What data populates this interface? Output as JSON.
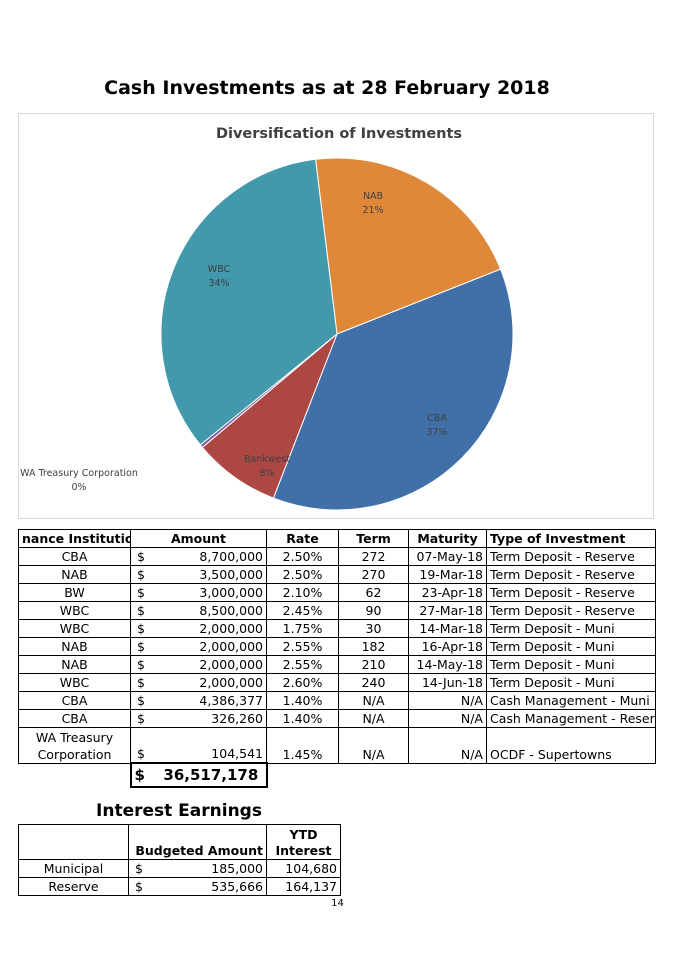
{
  "page": {
    "title": "Cash Investments as at 28 February 2018",
    "page_number": "14"
  },
  "chart_data": {
    "type": "pie",
    "title": "Diversification of Investments",
    "slices": [
      {
        "name": "NAB",
        "label": "21%",
        "value": 21,
        "color": "#E0883A"
      },
      {
        "name": "CBA",
        "label": "37%",
        "value": 37,
        "color": "#4170A8"
      },
      {
        "name": "Bankwest",
        "label": "8%",
        "value": 8,
        "color": "#AC4744"
      },
      {
        "name": "WA Treasury Corporation",
        "label": "0%",
        "value": 0.3,
        "color": "#7D60A0"
      },
      {
        "name": "WBC",
        "label": "34%",
        "value": 34,
        "color": "#4299AC"
      }
    ]
  },
  "investments": {
    "headers": [
      "nance Institutio",
      "Amount",
      "Rate",
      "Term",
      "Maturity",
      "Type of Investment"
    ],
    "currency_symbol": "$",
    "rows": [
      {
        "institution": "CBA",
        "amount": "8,700,000",
        "rate": "2.50%",
        "term": "272",
        "maturity": "07-May-18",
        "type": "Term Deposit - Reserve"
      },
      {
        "institution": "NAB",
        "amount": "3,500,000",
        "rate": "2.50%",
        "term": "270",
        "maturity": "19-Mar-18",
        "type": "Term Deposit - Reserve"
      },
      {
        "institution": "BW",
        "amount": "3,000,000",
        "rate": "2.10%",
        "term": "62",
        "maturity": "23-Apr-18",
        "type": "Term Deposit - Reserve"
      },
      {
        "institution": "WBC",
        "amount": "8,500,000",
        "rate": "2.45%",
        "term": "90",
        "maturity": "27-Mar-18",
        "type": "Term Deposit - Reserve"
      },
      {
        "institution": "WBC",
        "amount": "2,000,000",
        "rate": "1.75%",
        "term": "30",
        "maturity": "14-Mar-18",
        "type": "Term Deposit - Muni"
      },
      {
        "institution": "NAB",
        "amount": "2,000,000",
        "rate": "2.55%",
        "term": "182",
        "maturity": "16-Apr-18",
        "type": "Term Deposit - Muni"
      },
      {
        "institution": "NAB",
        "amount": "2,000,000",
        "rate": "2.55%",
        "term": "210",
        "maturity": "14-May-18",
        "type": "Term Deposit - Muni"
      },
      {
        "institution": "WBC",
        "amount": "2,000,000",
        "rate": "2.60%",
        "term": "240",
        "maturity": "14-Jun-18",
        "type": "Term Deposit - Muni"
      },
      {
        "institution": "CBA",
        "amount": "4,386,377",
        "rate": "1.40%",
        "term": "N/A",
        "maturity": "N/A",
        "type": "Cash Management - Muni"
      },
      {
        "institution": "CBA",
        "amount": "326,260",
        "rate": "1.40%",
        "term": "N/A",
        "maturity": "N/A",
        "type": "Cash Management - Reserve"
      },
      {
        "institution": "WA Treasury Corporation",
        "amount": "104,541",
        "rate": "1.45%",
        "term": "N/A",
        "maturity": "N/A",
        "type": "OCDF - Supertowns"
      }
    ],
    "total_currency": "$",
    "total": "36,517,178"
  },
  "interest": {
    "title": "Interest Earnings",
    "headers": [
      "",
      "Budgeted Amount",
      "YTD Interest"
    ],
    "rows": [
      {
        "label": "Municipal",
        "budget": "185,000",
        "ytd": "104,680"
      },
      {
        "label": "Reserve",
        "budget": "535,666",
        "ytd": "164,137"
      }
    ]
  }
}
